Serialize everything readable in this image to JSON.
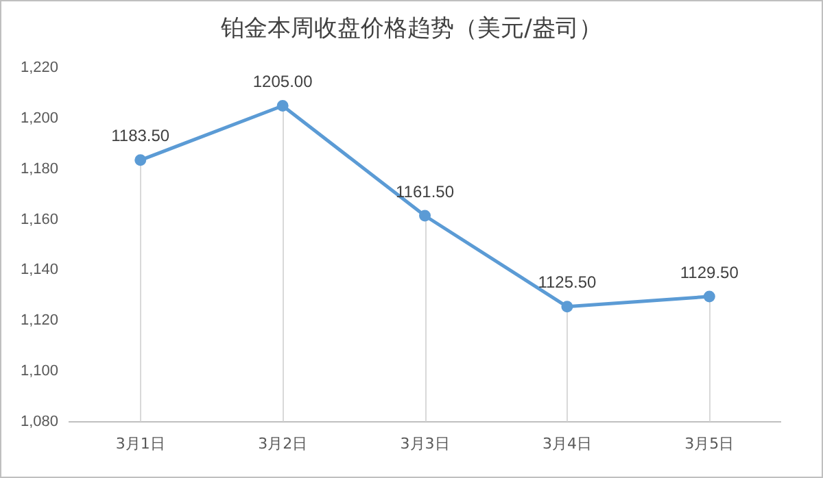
{
  "chart_data": {
    "type": "line",
    "title": "铂金本周收盘价格趋势（美元/盎司）",
    "categories": [
      "3月1日",
      "3月2日",
      "3月3日",
      "3月4日",
      "3月5日"
    ],
    "series": [
      {
        "color": "#5b9bd5",
        "values": [
          1183.5,
          1205.0,
          1161.5,
          1125.5,
          1129.5
        ]
      }
    ],
    "value_labels": [
      "1183.50",
      "1205.00",
      "1161.50",
      "1125.50",
      "1129.50"
    ],
    "ylim": [
      1080,
      1220
    ],
    "yticks": [
      {
        "value": 1080,
        "label": "1,080"
      },
      {
        "value": 1100,
        "label": "1,100"
      },
      {
        "value": 1120,
        "label": "1,120"
      },
      {
        "value": 1140,
        "label": "1,140"
      },
      {
        "value": 1160,
        "label": "1,160"
      },
      {
        "value": 1180,
        "label": "1,180"
      },
      {
        "value": 1200,
        "label": "1,200"
      },
      {
        "value": 1220,
        "label": "1,220"
      }
    ],
    "grid": "x",
    "legend": false,
    "marker": "circle",
    "line_style": "solid"
  }
}
